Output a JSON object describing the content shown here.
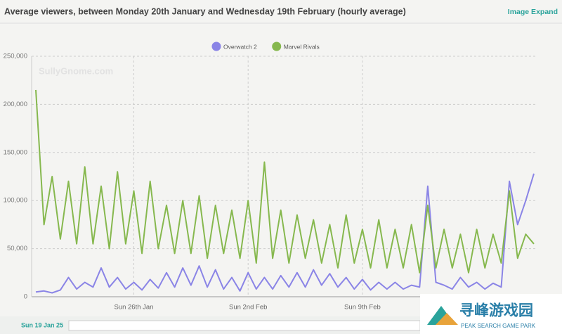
{
  "chart_data": {
    "type": "line",
    "title": "Average viewers, between Monday 20th January and Wednesday 19th February (hourly average)",
    "link": "Image Expand",
    "watermark": "SullyGnome.com",
    "categories": [
      null,
      null,
      null,
      null,
      null,
      null,
      null,
      null,
      null,
      null,
      null,
      null,
      "Sun 26th Jan",
      null,
      null,
      null,
      null,
      null,
      null,
      null,
      null,
      null,
      null,
      null,
      null,
      null,
      "Sun 2nd Feb",
      null,
      null,
      null,
      null,
      null,
      null,
      null,
      null,
      null,
      null,
      null,
      null,
      null,
      "Sun 9th Feb",
      null,
      null,
      null,
      null,
      null,
      null,
      null,
      null,
      null,
      null,
      null,
      null,
      null,
      null,
      null,
      null,
      null,
      null,
      null,
      null,
      null
    ],
    "series": [
      {
        "name": "Overwatch 2",
        "color": "#8a84e6",
        "values": [
          5000,
          6000,
          4000,
          7000,
          20000,
          8000,
          15000,
          10000,
          30000,
          10000,
          20000,
          8000,
          15000,
          7000,
          18000,
          9000,
          25000,
          10000,
          30000,
          12000,
          32000,
          10000,
          28000,
          8000,
          20000,
          6000,
          25000,
          8000,
          20000,
          8000,
          22000,
          10000,
          25000,
          10000,
          28000,
          12000,
          24000,
          10000,
          20000,
          8000,
          18000,
          7000,
          15000,
          8000,
          15000,
          8000,
          12000,
          10000,
          115000,
          15000,
          12000,
          8000,
          20000,
          10000,
          15000,
          8000,
          14000,
          10000,
          120000,
          75000,
          100000,
          128000
        ]
      },
      {
        "name": "Marvel Rivals",
        "color": "#86b84e",
        "values": [
          215000,
          75000,
          125000,
          60000,
          120000,
          55000,
          135000,
          55000,
          115000,
          50000,
          130000,
          55000,
          110000,
          45000,
          120000,
          50000,
          95000,
          45000,
          100000,
          45000,
          105000,
          40000,
          95000,
          45000,
          90000,
          40000,
          100000,
          35000,
          140000,
          40000,
          90000,
          35000,
          85000,
          40000,
          80000,
          35000,
          75000,
          30000,
          85000,
          35000,
          70000,
          30000,
          80000,
          30000,
          70000,
          30000,
          75000,
          25000,
          95000,
          30000,
          70000,
          30000,
          65000,
          25000,
          70000,
          30000,
          65000,
          35000,
          110000,
          40000,
          65000,
          55000
        ]
      }
    ],
    "ylim": [
      0,
      250000
    ],
    "yticks": [
      0,
      {
        "value": 50000,
        "label": "50,000"
      },
      {
        "value": 100000,
        "label": "100,000"
      },
      {
        "value": 150000,
        "label": "150,000"
      },
      {
        "value": 200000,
        "label": "200,000"
      },
      {
        "value": 250000,
        "label": "250,000"
      }
    ],
    "grid": true,
    "legend": "top"
  },
  "navigator": {
    "start_label": "Sun 19 Jan 25"
  },
  "logo": {
    "title": "寻峰游戏园",
    "subtitle": "PEAK SEARCH GAME PARK"
  }
}
